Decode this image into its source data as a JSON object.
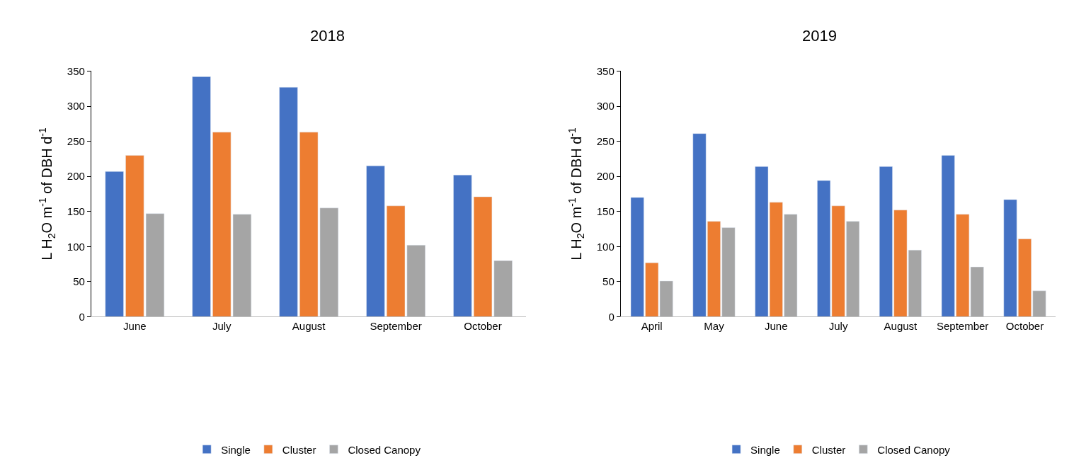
{
  "chart_data": [
    {
      "type": "bar",
      "title": "2018",
      "ylabel": "L H$_{2}$O m$^{-1}$ of DBH d$^{-1}$",
      "categories": [
        "June",
        "July",
        "August",
        "September",
        "October"
      ],
      "series": [
        {
          "name": "Single",
          "color": "#4472c4",
          "values": [
            207,
            342,
            327,
            215,
            202
          ]
        },
        {
          "name": "Cluster",
          "color": "#ed7d31",
          "values": [
            230,
            263,
            263,
            158,
            171
          ]
        },
        {
          "name": "Closed Canopy",
          "color": "#a5a5a5",
          "values": [
            147,
            146,
            155,
            102,
            80
          ]
        }
      ],
      "ylim": [
        0,
        350
      ],
      "yticks": [
        0,
        50,
        100,
        150,
        200,
        250,
        300,
        350
      ],
      "legend": "bottom",
      "grid": false
    },
    {
      "type": "bar",
      "title": "2019",
      "ylabel": "L H$_{2}$O m$^{-1}$ of DBH d$^{-1}$",
      "categories": [
        "April",
        "May",
        "June",
        "July",
        "August",
        "September",
        "October"
      ],
      "series": [
        {
          "name": "Single",
          "color": "#4472c4",
          "values": [
            170,
            261,
            214,
            194,
            214,
            230,
            167
          ]
        },
        {
          "name": "Cluster",
          "color": "#ed7d31",
          "values": [
            77,
            136,
            163,
            158,
            152,
            146,
            111
          ]
        },
        {
          "name": "Closed Canopy",
          "color": "#a5a5a5",
          "values": [
            51,
            127,
            146,
            136,
            95,
            71,
            37
          ]
        }
      ],
      "ylim": [
        0,
        350
      ],
      "yticks": [
        0,
        50,
        100,
        150,
        200,
        250,
        300,
        350
      ],
      "legend": "bottom",
      "grid": false
    }
  ]
}
